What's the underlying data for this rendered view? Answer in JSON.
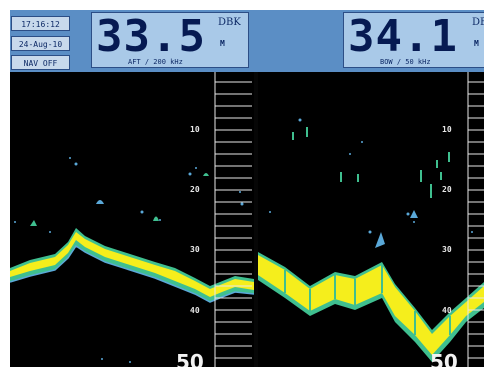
{
  "status": {
    "time": "17:16:12",
    "date": "24-Aug-10",
    "nav": "NAV OFF"
  },
  "aft": {
    "depth": "33.5",
    "unit": "DBK",
    "unit2": "M",
    "label": "AFT / 200 kHz"
  },
  "bow": {
    "depth": "34.1",
    "unit": "DB",
    "unit2": "M",
    "label": "BOW / 50 kHz"
  },
  "scale": {
    "ticks": [
      "10",
      "20",
      "30",
      "40"
    ],
    "bottom": "50"
  },
  "colors": {
    "echo_strong": "#f5ee1c",
    "echo_mid": "#3fbf8f",
    "echo_weak": "#5aa8d8",
    "background": "#000000",
    "header": "#5b8ec5"
  }
}
